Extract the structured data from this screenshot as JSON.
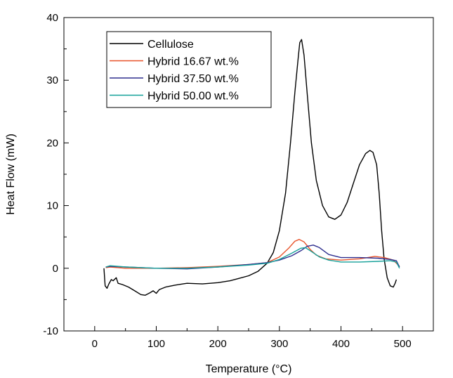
{
  "chart_data": {
    "type": "line",
    "xlabel": "Temperature (°C)",
    "ylabel": "Heat Flow (mW)",
    "xlim": [
      -50,
      550
    ],
    "ylim": [
      -10,
      40
    ],
    "x_ticks": [
      0,
      100,
      200,
      300,
      400,
      500
    ],
    "y_ticks": [
      -10,
      0,
      10,
      20,
      30,
      40
    ],
    "x_tick_labels": [
      "0",
      "100",
      "200",
      "300",
      "400",
      "500"
    ],
    "y_tick_labels": [
      "-10",
      "0",
      "10",
      "20",
      "30",
      "40"
    ],
    "grid": false,
    "legend_position": "top-left",
    "series": [
      {
        "name": "Cellulose",
        "color": "#000000",
        "points": [
          [
            15,
            0.0
          ],
          [
            17,
            -2.8
          ],
          [
            20,
            -3.2
          ],
          [
            23,
            -2.5
          ],
          [
            27,
            -1.8
          ],
          [
            30,
            -2.0
          ],
          [
            35,
            -1.5
          ],
          [
            38,
            -2.4
          ],
          [
            45,
            -2.6
          ],
          [
            55,
            -3.0
          ],
          [
            65,
            -3.6
          ],
          [
            75,
            -4.2
          ],
          [
            82,
            -4.3
          ],
          [
            90,
            -3.9
          ],
          [
            95,
            -3.6
          ],
          [
            100,
            -4.0
          ],
          [
            105,
            -3.4
          ],
          [
            115,
            -3.0
          ],
          [
            130,
            -2.7
          ],
          [
            150,
            -2.4
          ],
          [
            175,
            -2.5
          ],
          [
            200,
            -2.3
          ],
          [
            220,
            -2.0
          ],
          [
            235,
            -1.6
          ],
          [
            250,
            -1.2
          ],
          [
            265,
            -0.5
          ],
          [
            280,
            0.8
          ],
          [
            290,
            2.5
          ],
          [
            300,
            6.0
          ],
          [
            310,
            12.0
          ],
          [
            318,
            20.0
          ],
          [
            325,
            28.0
          ],
          [
            330,
            33.0
          ],
          [
            333,
            36.0
          ],
          [
            336,
            36.5
          ],
          [
            340,
            34.0
          ],
          [
            345,
            28.0
          ],
          [
            352,
            20.0
          ],
          [
            360,
            14.0
          ],
          [
            370,
            10.0
          ],
          [
            380,
            8.2
          ],
          [
            390,
            7.8
          ],
          [
            400,
            8.5
          ],
          [
            410,
            10.5
          ],
          [
            420,
            13.5
          ],
          [
            430,
            16.5
          ],
          [
            440,
            18.3
          ],
          [
            447,
            18.8
          ],
          [
            452,
            18.5
          ],
          [
            458,
            16.5
          ],
          [
            462,
            12.0
          ],
          [
            466,
            6.0
          ],
          [
            470,
            1.5
          ],
          [
            475,
            -1.5
          ],
          [
            480,
            -2.8
          ],
          [
            485,
            -3.0
          ],
          [
            488,
            -2.4
          ],
          [
            490,
            -1.8
          ]
        ]
      },
      {
        "name": "Hybrid 16.67 wt.%",
        "color": "#e8542c",
        "points": [
          [
            18,
            0.1
          ],
          [
            25,
            0.2
          ],
          [
            50,
            0.0
          ],
          [
            100,
            0.0
          ],
          [
            150,
            0.1
          ],
          [
            200,
            0.3
          ],
          [
            250,
            0.6
          ],
          [
            280,
            0.9
          ],
          [
            300,
            1.8
          ],
          [
            315,
            3.2
          ],
          [
            325,
            4.3
          ],
          [
            332,
            4.6
          ],
          [
            340,
            4.2
          ],
          [
            350,
            3.0
          ],
          [
            360,
            2.1
          ],
          [
            375,
            1.5
          ],
          [
            400,
            1.3
          ],
          [
            430,
            1.5
          ],
          [
            455,
            1.9
          ],
          [
            470,
            1.7
          ],
          [
            485,
            1.3
          ],
          [
            495,
            0.3
          ]
        ]
      },
      {
        "name": "Hybrid 37.50 wt.%",
        "color": "#2e2e8e",
        "points": [
          [
            18,
            0.2
          ],
          [
            25,
            0.3
          ],
          [
            50,
            0.2
          ],
          [
            100,
            0.0
          ],
          [
            150,
            -0.1
          ],
          [
            200,
            0.2
          ],
          [
            250,
            0.6
          ],
          [
            280,
            0.9
          ],
          [
            300,
            1.3
          ],
          [
            320,
            2.0
          ],
          [
            335,
            2.8
          ],
          [
            345,
            3.5
          ],
          [
            355,
            3.7
          ],
          [
            365,
            3.3
          ],
          [
            380,
            2.2
          ],
          [
            400,
            1.7
          ],
          [
            430,
            1.7
          ],
          [
            460,
            1.6
          ],
          [
            480,
            1.4
          ],
          [
            490,
            1.2
          ],
          [
            495,
            0.2
          ]
        ]
      },
      {
        "name": "Hybrid 50.00 wt.%",
        "color": "#17a19a",
        "points": [
          [
            18,
            0.2
          ],
          [
            25,
            0.4
          ],
          [
            50,
            0.2
          ],
          [
            100,
            0.0
          ],
          [
            150,
            0.0
          ],
          [
            200,
            0.2
          ],
          [
            250,
            0.5
          ],
          [
            280,
            0.8
          ],
          [
            300,
            1.4
          ],
          [
            320,
            2.4
          ],
          [
            335,
            3.2
          ],
          [
            342,
            3.3
          ],
          [
            350,
            2.8
          ],
          [
            365,
            1.8
          ],
          [
            380,
            1.3
          ],
          [
            400,
            1.0
          ],
          [
            430,
            1.0
          ],
          [
            460,
            1.1
          ],
          [
            480,
            1.2
          ],
          [
            490,
            1.0
          ],
          [
            495,
            0.0
          ]
        ]
      }
    ]
  }
}
